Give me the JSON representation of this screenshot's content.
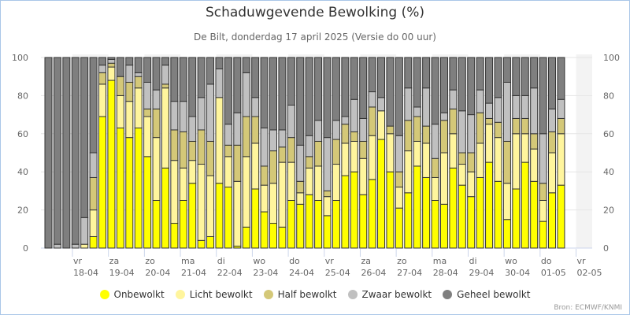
{
  "chart_data": {
    "type": "bar",
    "stacked": true,
    "title": "Schaduwgevende Bewolking (%)",
    "subtitle": "De Bilt, donderdag 17 april 2025 (Versie do 00 uur)",
    "ylim": [
      0,
      100
    ],
    "yticks": [
      0,
      20,
      40,
      60,
      80,
      100
    ],
    "grid": true,
    "legend_position": "bottom",
    "credit": "Bron: ECMWF/KNMI",
    "day_labels": [
      {
        "day": "vr",
        "date": "18-04"
      },
      {
        "day": "za",
        "date": "19-04"
      },
      {
        "day": "zo",
        "date": "20-04"
      },
      {
        "day": "ma",
        "date": "21-04"
      },
      {
        "day": "di",
        "date": "22-04"
      },
      {
        "day": "wo",
        "date": "23-04"
      },
      {
        "day": "do",
        "date": "24-04"
      },
      {
        "day": "vr",
        "date": "25-04"
      },
      {
        "day": "za",
        "date": "26-04"
      },
      {
        "day": "zo",
        "date": "27-04"
      },
      {
        "day": "ma",
        "date": "28-04"
      },
      {
        "day": "di",
        "date": "29-04"
      },
      {
        "day": "wo",
        "date": "30-04"
      },
      {
        "day": "do",
        "date": "01-05"
      },
      {
        "day": "vr",
        "date": "02-05"
      }
    ],
    "series": [
      {
        "name": "Onbewolkt",
        "color": "#ffff00",
        "values": [
          0,
          0,
          0,
          0,
          0,
          6,
          69,
          88,
          63,
          58,
          63,
          48,
          25,
          42,
          13,
          25,
          34,
          4,
          6,
          34,
          32,
          1,
          11,
          31,
          19,
          13,
          11,
          25,
          23,
          28,
          25,
          17,
          25,
          38,
          40,
          28,
          36,
          57,
          40,
          21,
          29,
          43,
          37,
          25,
          23,
          42,
          33,
          27,
          37,
          45,
          35,
          15,
          31,
          45,
          35,
          14,
          29,
          33
        ]
      },
      {
        "name": "Licht bewolkt",
        "color": "#fff59d",
        "values": [
          0,
          0,
          0,
          0,
          2,
          14,
          17,
          7,
          17,
          19,
          21,
          21,
          33,
          42,
          33,
          17,
          12,
          40,
          32,
          45,
          16,
          34,
          37,
          24,
          14,
          21,
          34,
          20,
          6,
          14,
          18,
          10,
          19,
          17,
          16,
          19,
          23,
          15,
          20,
          11,
          22,
          13,
          18,
          12,
          27,
          18,
          11,
          13,
          18,
          20,
          23,
          19,
          29,
          15,
          17,
          11,
          21,
          27
        ]
      },
      {
        "name": "Half bewolkt",
        "color": "#d4c878",
        "values": [
          0,
          0,
          0,
          0,
          0,
          17,
          6,
          2,
          10,
          10,
          6,
          4,
          15,
          2,
          16,
          19,
          10,
          18,
          18,
          0,
          6,
          19,
          21,
          14,
          10,
          17,
          8,
          13,
          6,
          6,
          13,
          3,
          13,
          10,
          5,
          9,
          15,
          0,
          4,
          8,
          16,
          13,
          9,
          10,
          17,
          13,
          6,
          10,
          16,
          3,
          8,
          22,
          8,
          8,
          8,
          9,
          11,
          8
        ]
      },
      {
        "name": "Zwaar bewolkt",
        "color": "#c0c0c0",
        "values": [
          0,
          2,
          0,
          2,
          14,
          13,
          4,
          2,
          0,
          9,
          2,
          14,
          10,
          10,
          15,
          16,
          13,
          17,
          30,
          15,
          11,
          17,
          23,
          10,
          20,
          11,
          9,
          17,
          19,
          11,
          11,
          28,
          10,
          4,
          17,
          12,
          8,
          7,
          0,
          19,
          17,
          5,
          20,
          18,
          4,
          10,
          22,
          20,
          12,
          8,
          13,
          31,
          12,
          12,
          24,
          26,
          12,
          10
        ]
      },
      {
        "name": "Geheel bewolkt",
        "color": "#7f7f7f",
        "values": [
          100,
          98,
          100,
          98,
          84,
          50,
          4,
          1,
          10,
          4,
          8,
          13,
          17,
          4,
          23,
          23,
          31,
          21,
          14,
          6,
          35,
          29,
          8,
          21,
          37,
          38,
          38,
          25,
          46,
          41,
          33,
          42,
          33,
          31,
          22,
          32,
          18,
          21,
          36,
          41,
          16,
          26,
          16,
          35,
          29,
          17,
          28,
          30,
          17,
          24,
          21,
          13,
          20,
          20,
          16,
          40,
          27,
          22
        ]
      }
    ]
  }
}
